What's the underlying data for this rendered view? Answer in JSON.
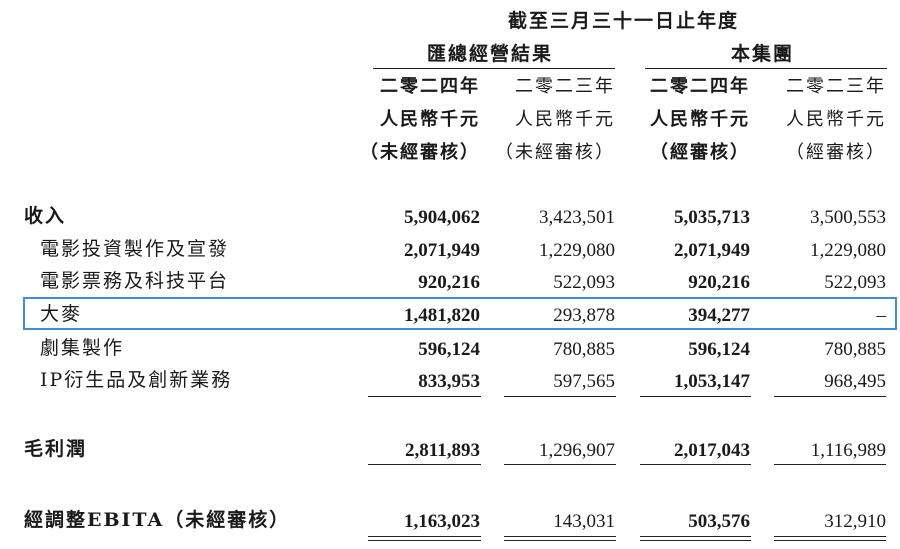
{
  "header": {
    "period": "截至三月三十一日止年度",
    "group_left": "匯總經營結果",
    "group_right": "本集團"
  },
  "columns": [
    {
      "year": "二零二四年",
      "unit": "人民幣千元",
      "audit": "（未經審核）"
    },
    {
      "year": "二零二三年",
      "unit": "人民幣千元",
      "audit": "（未經審核）"
    },
    {
      "year": "二零二四年",
      "unit": "人民幣千元",
      "audit": "（經審核）"
    },
    {
      "year": "二零二三年",
      "unit": "人民幣千元",
      "audit": "（經審核）"
    }
  ],
  "rows": [
    {
      "label": "收入",
      "values": [
        "5,904,062",
        "3,423,501",
        "5,035,713",
        "3,500,553"
      ]
    },
    {
      "label": "電影投資製作及宣發",
      "values": [
        "2,071,949",
        "1,229,080",
        "2,071,949",
        "1,229,080"
      ]
    },
    {
      "label": "電影票務及科技平台",
      "values": [
        "920,216",
        "522,093",
        "920,216",
        "522,093"
      ]
    },
    {
      "label": "大麥",
      "values": [
        "1,481,820",
        "293,878",
        "394,277",
        "–"
      ]
    },
    {
      "label": "劇集製作",
      "values": [
        "596,124",
        "780,885",
        "596,124",
        "780,885"
      ]
    },
    {
      "label": "IP衍生品及創新業務",
      "values": [
        "833,953",
        "597,565",
        "1,053,147",
        "968,495"
      ]
    },
    {
      "label": "毛利潤",
      "values": [
        "2,811,893",
        "1,296,907",
        "2,017,043",
        "1,116,989"
      ]
    },
    {
      "label": "經調整EBITA（未經審核）",
      "values": [
        "1,163,023",
        "143,031",
        "503,576",
        "312,910"
      ]
    }
  ],
  "highlight_color": "#3a8fd8"
}
